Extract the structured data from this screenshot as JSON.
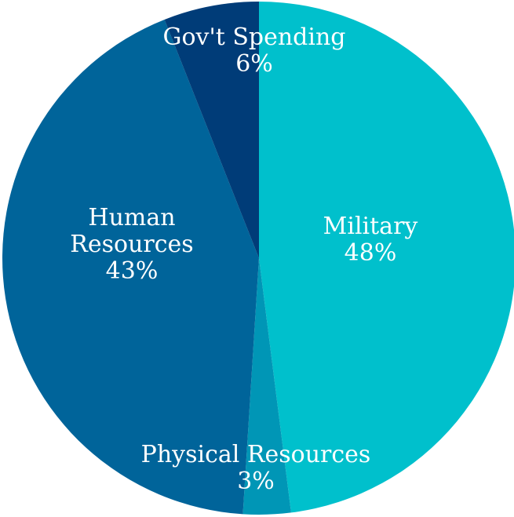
{
  "chart_data": {
    "type": "pie",
    "slices": [
      {
        "label_lines": [
          "Military"
        ],
        "value": 48,
        "value_label": "48%",
        "color": "#00C0CC"
      },
      {
        "label_lines": [
          "Physical Resources"
        ],
        "value": 3,
        "value_label": "3%",
        "color": "#0096B6"
      },
      {
        "label_lines": [
          "Human",
          "Resources"
        ],
        "value": 43,
        "value_label": "43%",
        "color": "#00649A"
      },
      {
        "label_lines": [
          "Gov't Spending"
        ],
        "value": 6,
        "value_label": "6%",
        "color": "#003C78"
      }
    ],
    "start_angle_deg": 0,
    "direction": "clockwise",
    "legend": "none",
    "title": ""
  }
}
